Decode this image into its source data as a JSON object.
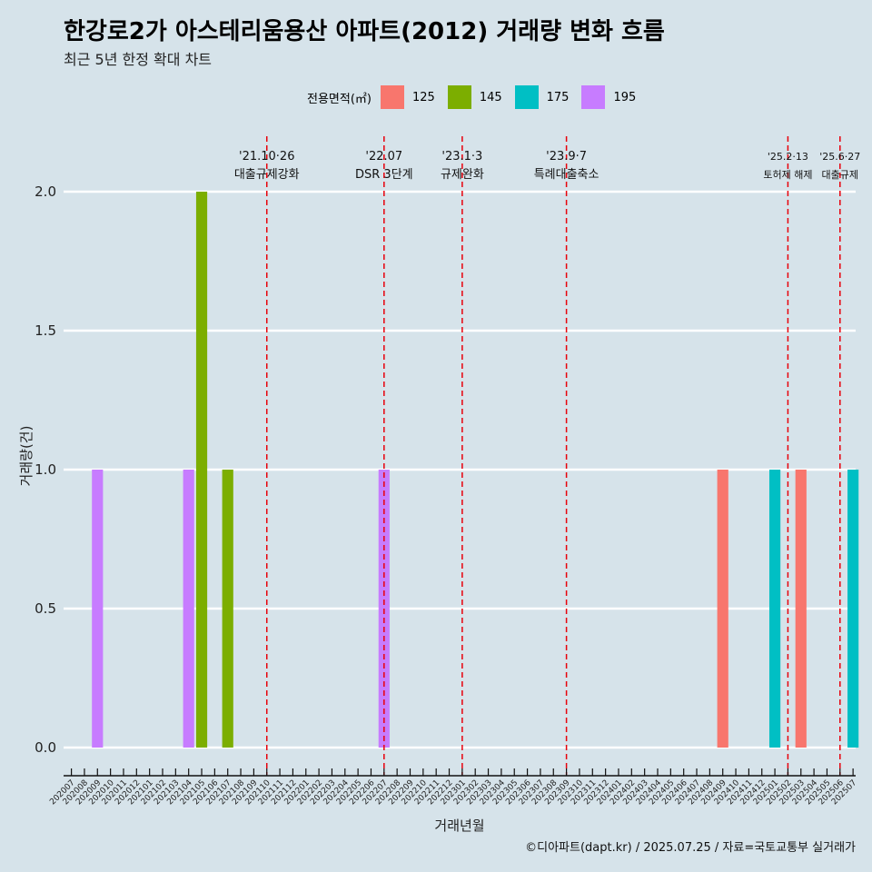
{
  "title": "한강로2가 아스테리움용산 아파트(2012) 거래량 변화 흐름",
  "subtitle": "최근 5년 한정 확대 차트",
  "caption": "©디아파트(dapt.kr) / 2025.07.25 / 자료=국토교통부 실거래가",
  "legend": {
    "title": "전용면적(㎡)",
    "items": [
      {
        "label": "125",
        "color": "#f8766d"
      },
      {
        "label": "145",
        "color": "#7cae00"
      },
      {
        "label": "175",
        "color": "#00bfc4"
      },
      {
        "label": "195",
        "color": "#c77cff"
      }
    ]
  },
  "chart_data": {
    "type": "bar",
    "xlabel": "거래년월",
    "ylabel": "거래량(건)",
    "ylim": [
      0,
      2
    ],
    "y_ticks": [
      "0.0",
      "0.5",
      "1.0",
      "1.5",
      "2.0"
    ],
    "categories": [
      "202007",
      "202008",
      "202009",
      "202010",
      "202011",
      "202012",
      "202101",
      "202102",
      "202103",
      "202104",
      "202105",
      "202106",
      "202107",
      "202108",
      "202109",
      "202110",
      "202111",
      "202112",
      "202201",
      "202202",
      "202203",
      "202204",
      "202205",
      "202206",
      "202207",
      "202208",
      "202209",
      "202210",
      "202211",
      "202212",
      "202301",
      "202302",
      "202303",
      "202304",
      "202305",
      "202306",
      "202307",
      "202308",
      "202309",
      "202310",
      "202311",
      "202312",
      "202401",
      "202402",
      "202403",
      "202404",
      "202405",
      "202406",
      "202407",
      "202408",
      "202409",
      "202410",
      "202411",
      "202412",
      "202501",
      "202502",
      "202503",
      "202504",
      "202505",
      "202506",
      "202507"
    ],
    "bars": [
      {
        "month": "202009",
        "series": "195",
        "value": 1
      },
      {
        "month": "202104",
        "series": "195",
        "value": 1
      },
      {
        "month": "202105",
        "series": "145",
        "value": 2
      },
      {
        "month": "202107",
        "series": "145",
        "value": 1
      },
      {
        "month": "202207",
        "series": "195",
        "value": 1
      },
      {
        "month": "202409",
        "series": "125",
        "value": 1
      },
      {
        "month": "202501",
        "series": "175",
        "value": 1
      },
      {
        "month": "202503",
        "series": "125",
        "value": 1
      },
      {
        "month": "202507",
        "series": "175",
        "value": 1
      }
    ],
    "events": [
      {
        "month": "202110",
        "date": "'21.10·26",
        "label": "대출규제강화"
      },
      {
        "month": "202207",
        "date": "'22.07",
        "label": "DSR 3단계"
      },
      {
        "month": "202301",
        "date": "'23.1·3",
        "label": "규제완화"
      },
      {
        "month": "202309",
        "date": "'23.9·7",
        "label": "특례대출축소"
      },
      {
        "month": "202502",
        "date": "'25.2·13",
        "label": "토허제 해제"
      },
      {
        "month": "202506",
        "date": "'25.6·27",
        "label": "대출규제"
      }
    ],
    "grid": true
  }
}
